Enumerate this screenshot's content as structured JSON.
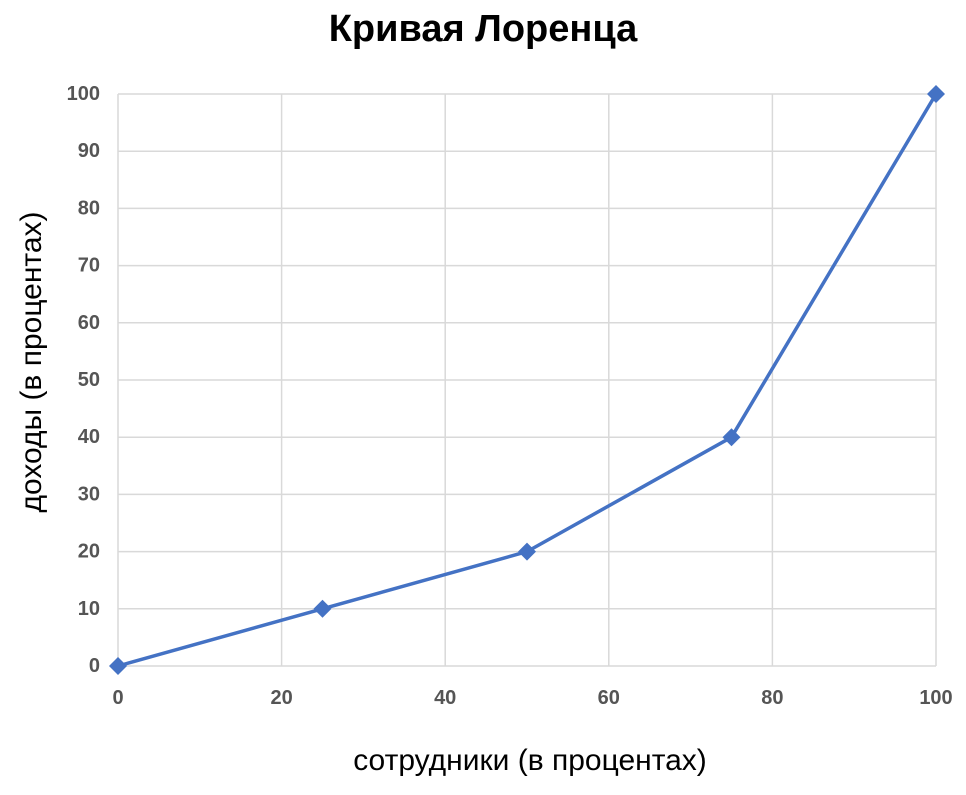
{
  "chart_data": {
    "type": "line",
    "title": "Кривая Лоренца",
    "xlabel": "сотрудники (в процентах)",
    "ylabel": "доходы (в процентах)",
    "xlim": [
      0,
      100
    ],
    "ylim": [
      0,
      100
    ],
    "x_ticks": [
      0,
      20,
      40,
      60,
      80,
      100
    ],
    "y_ticks": [
      0,
      10,
      20,
      30,
      40,
      50,
      60,
      70,
      80,
      90,
      100
    ],
    "x_tick_labels": [
      "0",
      "20",
      "40",
      "60",
      "80",
      "100"
    ],
    "y_tick_labels": [
      "0",
      "10",
      "20",
      "30",
      "40",
      "50",
      "60",
      "70",
      "80",
      "90",
      "100"
    ],
    "grid": true,
    "series": [
      {
        "x": [
          0,
          25,
          50,
          75,
          100
        ],
        "values": [
          0,
          10,
          20,
          40,
          100
        ],
        "marker": "diamond",
        "color": "#4472C4"
      }
    ],
    "colors": {
      "line": "#4472C4",
      "grid": "#D9D9D9",
      "tick_text": "#555555"
    }
  }
}
